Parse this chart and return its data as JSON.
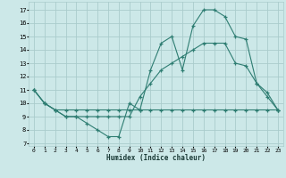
{
  "xlabel": "Humidex (Indice chaleur)",
  "bg_color": "#cce8e8",
  "grid_color": "#aacccc",
  "line_color": "#2e7d72",
  "xlim": [
    -0.5,
    23.5
  ],
  "ylim": [
    6.8,
    17.6
  ],
  "xticks": [
    0,
    1,
    2,
    3,
    4,
    5,
    6,
    7,
    8,
    9,
    10,
    11,
    12,
    13,
    14,
    15,
    16,
    17,
    18,
    19,
    20,
    21,
    22,
    23
  ],
  "yticks": [
    7,
    8,
    9,
    10,
    11,
    12,
    13,
    14,
    15,
    16,
    17
  ],
  "line1_x": [
    0,
    1,
    2,
    3,
    4,
    5,
    6,
    7,
    8,
    9,
    10,
    11,
    12,
    13,
    14,
    15,
    16,
    17,
    18,
    19,
    20,
    21,
    22,
    23
  ],
  "line1_y": [
    11,
    10,
    9.5,
    9,
    9,
    8.5,
    8,
    7.5,
    7.5,
    10,
    9.5,
    12.5,
    14.5,
    15,
    12.5,
    15.8,
    17,
    17,
    16.5,
    15,
    14.8,
    11.5,
    10.5,
    9.5
  ],
  "line2_x": [
    0,
    1,
    2,
    3,
    4,
    5,
    6,
    7,
    8,
    9,
    10,
    11,
    12,
    13,
    14,
    15,
    16,
    17,
    18,
    19,
    20,
    21,
    22,
    23
  ],
  "line2_y": [
    11,
    10,
    9.5,
    9.5,
    9.5,
    9.5,
    9.5,
    9.5,
    9.5,
    9.5,
    9.5,
    9.5,
    9.5,
    9.5,
    9.5,
    9.5,
    9.5,
    9.5,
    9.5,
    9.5,
    9.5,
    9.5,
    9.5,
    9.5
  ],
  "line3_x": [
    0,
    1,
    2,
    3,
    4,
    5,
    6,
    7,
    8,
    9,
    10,
    11,
    12,
    13,
    14,
    15,
    16,
    17,
    18,
    19,
    20,
    21,
    22,
    23
  ],
  "line3_y": [
    11,
    10,
    9.5,
    9,
    9,
    9,
    9,
    9,
    9,
    9,
    10.5,
    11.5,
    12.5,
    13,
    13.5,
    14,
    14.5,
    14.5,
    14.5,
    13,
    12.8,
    11.5,
    10.8,
    9.5
  ]
}
